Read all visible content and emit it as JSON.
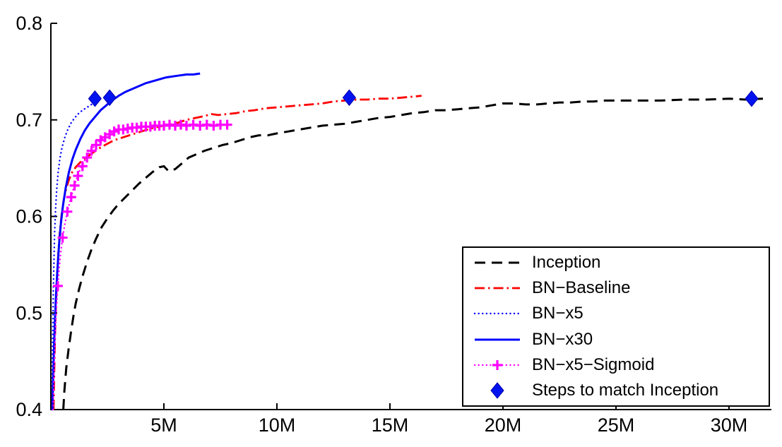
{
  "chart_data": {
    "type": "line",
    "title": "",
    "xlabel": "",
    "ylabel": "",
    "xlim": [
      0,
      31.875
    ],
    "ylim": [
      0.4,
      0.8
    ],
    "x_ticks": [
      5,
      10,
      15,
      20,
      25,
      30
    ],
    "x_tick_labels": [
      "5M",
      "10M",
      "15M",
      "20M",
      "25M",
      "30M"
    ],
    "y_ticks": [
      0.4,
      0.5,
      0.6,
      0.7,
      0.8
    ],
    "y_tick_labels": [
      "0.4",
      "0.5",
      "0.6",
      "0.7",
      "0.8"
    ],
    "grid": false,
    "legend": {
      "position": "inside lower right",
      "border": true
    },
    "series": [
      {
        "name": "Inception",
        "color": "#000000",
        "style": "dashed",
        "marker": null,
        "points": [
          [
            0.55,
            0.4
          ],
          [
            0.6,
            0.42
          ],
          [
            0.68,
            0.443
          ],
          [
            0.78,
            0.462
          ],
          [
            0.9,
            0.482
          ],
          [
            1.0,
            0.497
          ],
          [
            1.1,
            0.51
          ],
          [
            1.25,
            0.525
          ],
          [
            1.4,
            0.538
          ],
          [
            1.6,
            0.553
          ],
          [
            1.8,
            0.566
          ],
          [
            2.0,
            0.577
          ],
          [
            2.25,
            0.589
          ],
          [
            2.5,
            0.598
          ],
          [
            2.75,
            0.606
          ],
          [
            3.0,
            0.613
          ],
          [
            3.3,
            0.62
          ],
          [
            3.6,
            0.627
          ],
          [
            3.9,
            0.634
          ],
          [
            4.2,
            0.64
          ],
          [
            4.5,
            0.646
          ],
          [
            4.8,
            0.651
          ],
          [
            5.0,
            0.652
          ],
          [
            5.2,
            0.647
          ],
          [
            5.5,
            0.649
          ],
          [
            5.8,
            0.655
          ],
          [
            6.1,
            0.661
          ],
          [
            6.4,
            0.664
          ],
          [
            6.8,
            0.668
          ],
          [
            7.2,
            0.671
          ],
          [
            7.6,
            0.674
          ],
          [
            8.0,
            0.676
          ],
          [
            8.4,
            0.679
          ],
          [
            8.8,
            0.682
          ],
          [
            9.2,
            0.684
          ],
          [
            9.6,
            0.684
          ],
          [
            10.0,
            0.686
          ],
          [
            10.5,
            0.688
          ],
          [
            11.0,
            0.69
          ],
          [
            11.5,
            0.692
          ],
          [
            12.0,
            0.694
          ],
          [
            12.5,
            0.695
          ],
          [
            13.0,
            0.696
          ],
          [
            13.5,
            0.698
          ],
          [
            14.0,
            0.7
          ],
          [
            14.5,
            0.702
          ],
          [
            15.0,
            0.703
          ],
          [
            15.5,
            0.705
          ],
          [
            16.0,
            0.707
          ],
          [
            16.5,
            0.708
          ],
          [
            17.0,
            0.71
          ],
          [
            17.5,
            0.71
          ],
          [
            18.0,
            0.711
          ],
          [
            18.5,
            0.712
          ],
          [
            19.0,
            0.713
          ],
          [
            19.5,
            0.715
          ],
          [
            20.0,
            0.717
          ],
          [
            20.5,
            0.717
          ],
          [
            21.0,
            0.716
          ],
          [
            21.5,
            0.716
          ],
          [
            22.0,
            0.717
          ],
          [
            22.5,
            0.718
          ],
          [
            23.0,
            0.718
          ],
          [
            23.5,
            0.719
          ],
          [
            24.0,
            0.719
          ],
          [
            24.5,
            0.72
          ],
          [
            25.0,
            0.72
          ],
          [
            26.0,
            0.72
          ],
          [
            27.0,
            0.72
          ],
          [
            28.0,
            0.721
          ],
          [
            29.0,
            0.721
          ],
          [
            30.0,
            0.722
          ],
          [
            30.7,
            0.721
          ],
          [
            31.5,
            0.722
          ]
        ]
      },
      {
        "name": "BN−Baseline",
        "color": "#ff0000",
        "style": "dashdot",
        "marker": null,
        "points": [
          [
            0.12,
            0.4
          ],
          [
            0.15,
            0.44
          ],
          [
            0.18,
            0.475
          ],
          [
            0.22,
            0.505
          ],
          [
            0.27,
            0.535
          ],
          [
            0.33,
            0.562
          ],
          [
            0.4,
            0.585
          ],
          [
            0.48,
            0.603
          ],
          [
            0.57,
            0.617
          ],
          [
            0.68,
            0.629
          ],
          [
            0.8,
            0.638
          ],
          [
            0.95,
            0.646
          ],
          [
            1.1,
            0.651
          ],
          [
            1.3,
            0.656
          ],
          [
            1.5,
            0.66
          ],
          [
            1.8,
            0.665
          ],
          [
            2.1,
            0.67
          ],
          [
            2.4,
            0.674
          ],
          [
            2.8,
            0.679
          ],
          [
            3.2,
            0.682
          ],
          [
            3.6,
            0.685
          ],
          [
            4.0,
            0.688
          ],
          [
            4.4,
            0.691
          ],
          [
            4.8,
            0.693
          ],
          [
            5.2,
            0.695
          ],
          [
            5.6,
            0.697
          ],
          [
            6.0,
            0.7
          ],
          [
            6.4,
            0.702
          ],
          [
            6.8,
            0.704
          ],
          [
            7.1,
            0.706
          ],
          [
            7.4,
            0.705
          ],
          [
            7.8,
            0.706
          ],
          [
            8.2,
            0.707
          ],
          [
            8.6,
            0.709
          ],
          [
            9.0,
            0.71
          ],
          [
            9.5,
            0.712
          ],
          [
            10.0,
            0.713
          ],
          [
            10.5,
            0.714
          ],
          [
            11.0,
            0.715
          ],
          [
            11.5,
            0.716
          ],
          [
            12.0,
            0.717
          ],
          [
            12.5,
            0.719
          ],
          [
            13.0,
            0.72
          ],
          [
            13.5,
            0.721
          ],
          [
            14.0,
            0.721
          ],
          [
            14.5,
            0.722
          ],
          [
            15.0,
            0.722
          ],
          [
            15.5,
            0.723
          ],
          [
            16.0,
            0.724
          ],
          [
            16.4,
            0.725
          ]
        ]
      },
      {
        "name": "BN−x5",
        "color": "#0000ff",
        "style": "dotted",
        "marker": null,
        "points": [
          [
            0.05,
            0.4
          ],
          [
            0.07,
            0.45
          ],
          [
            0.09,
            0.49
          ],
          [
            0.11,
            0.525
          ],
          [
            0.14,
            0.558
          ],
          [
            0.17,
            0.585
          ],
          [
            0.21,
            0.608
          ],
          [
            0.26,
            0.628
          ],
          [
            0.32,
            0.645
          ],
          [
            0.4,
            0.66
          ],
          [
            0.5,
            0.672
          ],
          [
            0.62,
            0.682
          ],
          [
            0.75,
            0.69
          ],
          [
            0.9,
            0.697
          ],
          [
            1.05,
            0.702
          ],
          [
            1.2,
            0.706
          ],
          [
            1.4,
            0.71
          ],
          [
            1.6,
            0.713
          ],
          [
            1.8,
            0.716
          ],
          [
            2.0,
            0.718
          ],
          [
            2.15,
            0.72
          ]
        ]
      },
      {
        "name": "BN−x30",
        "color": "#0000ff",
        "style": "solid",
        "marker": null,
        "points": [
          [
            0.07,
            0.4
          ],
          [
            0.1,
            0.432
          ],
          [
            0.14,
            0.465
          ],
          [
            0.18,
            0.493
          ],
          [
            0.23,
            0.52
          ],
          [
            0.29,
            0.545
          ],
          [
            0.36,
            0.57
          ],
          [
            0.44,
            0.592
          ],
          [
            0.54,
            0.612
          ],
          [
            0.66,
            0.63
          ],
          [
            0.8,
            0.646
          ],
          [
            0.95,
            0.659
          ],
          [
            1.1,
            0.669
          ],
          [
            1.3,
            0.68
          ],
          [
            1.5,
            0.689
          ],
          [
            1.7,
            0.696
          ],
          [
            1.95,
            0.703
          ],
          [
            2.2,
            0.71
          ],
          [
            2.45,
            0.715
          ],
          [
            2.7,
            0.72
          ],
          [
            3.0,
            0.725
          ],
          [
            3.3,
            0.729
          ],
          [
            3.6,
            0.732
          ],
          [
            3.9,
            0.735
          ],
          [
            4.2,
            0.738
          ],
          [
            4.5,
            0.74
          ],
          [
            4.8,
            0.742
          ],
          [
            5.1,
            0.744
          ],
          [
            5.4,
            0.745
          ],
          [
            5.7,
            0.746
          ],
          [
            6.0,
            0.747
          ],
          [
            6.3,
            0.747
          ],
          [
            6.6,
            0.748
          ]
        ]
      },
      {
        "name": "BN−x5−Sigmoid",
        "color": "#ff00ff",
        "style": "dotted",
        "marker": "plus",
        "points": [
          [
            0.1,
            0.4
          ],
          [
            0.13,
            0.43
          ],
          [
            0.17,
            0.46
          ],
          [
            0.21,
            0.487
          ],
          [
            0.26,
            0.51
          ],
          [
            0.31,
            0.528
          ],
          [
            0.37,
            0.546
          ],
          [
            0.44,
            0.563
          ],
          [
            0.52,
            0.578
          ],
          [
            0.62,
            0.592
          ],
          [
            0.73,
            0.605
          ],
          [
            0.85,
            0.616
          ],
          [
            1.0,
            0.629
          ],
          [
            1.15,
            0.64
          ],
          [
            1.3,
            0.649
          ],
          [
            1.5,
            0.658
          ],
          [
            1.7,
            0.666
          ],
          [
            1.9,
            0.672
          ],
          [
            2.1,
            0.677
          ],
          [
            2.3,
            0.681
          ],
          [
            2.5,
            0.684
          ],
          [
            2.7,
            0.687
          ],
          [
            2.9,
            0.689
          ],
          [
            3.1,
            0.69
          ],
          [
            3.4,
            0.691
          ],
          [
            3.7,
            0.692
          ],
          [
            4.0,
            0.693
          ],
          [
            4.3,
            0.693
          ],
          [
            4.6,
            0.694
          ],
          [
            4.9,
            0.694
          ],
          [
            5.2,
            0.695
          ],
          [
            5.5,
            0.694
          ],
          [
            5.8,
            0.695
          ],
          [
            6.1,
            0.694
          ],
          [
            6.4,
            0.695
          ],
          [
            6.7,
            0.694
          ],
          [
            7.0,
            0.695
          ],
          [
            7.3,
            0.694
          ],
          [
            7.6,
            0.695
          ],
          [
            7.9,
            0.695
          ]
        ],
        "marker_points": [
          [
            0.31,
            0.528
          ],
          [
            0.52,
            0.578
          ],
          [
            0.73,
            0.605
          ],
          [
            0.9,
            0.62
          ],
          [
            1.05,
            0.632
          ],
          [
            1.2,
            0.642
          ],
          [
            1.4,
            0.652
          ],
          [
            1.6,
            0.661
          ],
          [
            1.8,
            0.668
          ],
          [
            2.0,
            0.674
          ],
          [
            2.2,
            0.679
          ],
          [
            2.4,
            0.682
          ],
          [
            2.6,
            0.685
          ],
          [
            2.8,
            0.688
          ],
          [
            3.0,
            0.69
          ],
          [
            3.2,
            0.69
          ],
          [
            3.4,
            0.691
          ],
          [
            3.6,
            0.692
          ],
          [
            3.8,
            0.692
          ],
          [
            4.0,
            0.693
          ],
          [
            4.2,
            0.693
          ],
          [
            4.4,
            0.693
          ],
          [
            4.6,
            0.694
          ],
          [
            4.8,
            0.694
          ],
          [
            5.0,
            0.694
          ],
          [
            5.25,
            0.695
          ],
          [
            5.5,
            0.694
          ],
          [
            5.75,
            0.695
          ],
          [
            6.0,
            0.694
          ],
          [
            6.3,
            0.695
          ],
          [
            6.6,
            0.694
          ],
          [
            6.9,
            0.695
          ],
          [
            7.2,
            0.694
          ],
          [
            7.5,
            0.695
          ],
          [
            7.8,
            0.695
          ]
        ]
      },
      {
        "name": "Steps to match Inception",
        "color": "#0013ee",
        "style": "none",
        "marker": "diamond",
        "points": [
          [
            1.95,
            0.722
          ],
          [
            2.6,
            0.723
          ],
          [
            13.2,
            0.723
          ],
          [
            31.0,
            0.722
          ]
        ]
      }
    ]
  }
}
